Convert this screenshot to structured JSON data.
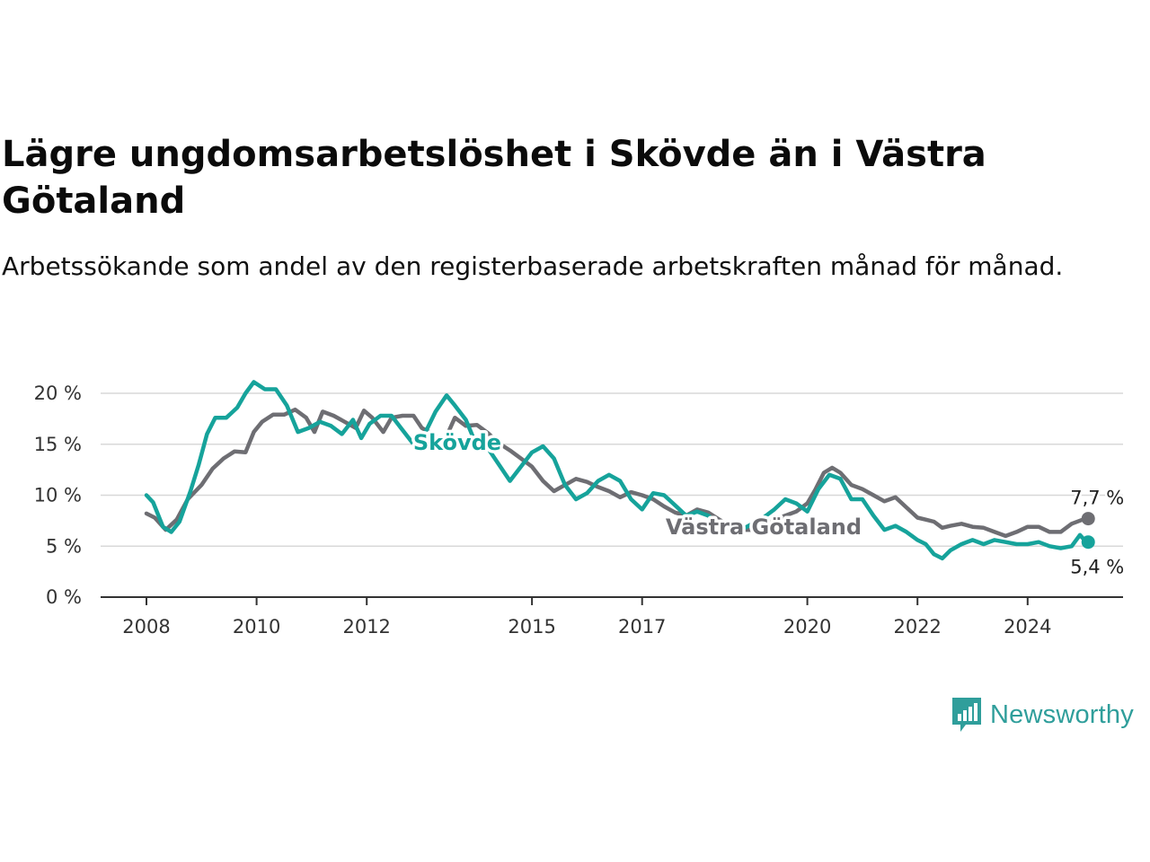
{
  "title": "Lägre ungdomsarbetslöshet i Skövde än i Västra Götaland",
  "subtitle": "Arbetssökande som andel av den registerbaserade arbetskraften månad för månad.",
  "brand": {
    "name": "Newsworthy",
    "icon": "newsworthy-logo-icon",
    "color": "#2f9e9b"
  },
  "chart_data": {
    "type": "line",
    "xlim": [
      2008,
      2025.2
    ],
    "ylim": [
      0,
      20
    ],
    "y_ticks": [
      0,
      5,
      10,
      15,
      20
    ],
    "y_tick_labels": [
      "0 %",
      "5 %",
      "10 %",
      "15 %",
      "20 %"
    ],
    "x_ticks": [
      2008,
      2010,
      2012,
      2015,
      2017,
      2020,
      2022,
      2024
    ],
    "x_tick_labels": [
      "2008",
      "2010",
      "2012",
      "2015",
      "2017",
      "2020",
      "2022",
      "2024"
    ],
    "grid": "horizontal",
    "series": [
      {
        "name": "Västra Götaland",
        "color": "#6e6e73",
        "end_label": "7,7 %",
        "points": [
          [
            2008.0,
            8.2
          ],
          [
            2008.15,
            7.8
          ],
          [
            2008.35,
            6.6
          ],
          [
            2008.55,
            7.6
          ],
          [
            2008.75,
            9.6
          ],
          [
            2009.0,
            11.0
          ],
          [
            2009.2,
            12.6
          ],
          [
            2009.4,
            13.6
          ],
          [
            2009.6,
            14.3
          ],
          [
            2009.8,
            14.2
          ],
          [
            2009.95,
            16.2
          ],
          [
            2010.1,
            17.2
          ],
          [
            2010.3,
            17.9
          ],
          [
            2010.5,
            17.9
          ],
          [
            2010.7,
            18.4
          ],
          [
            2010.9,
            17.6
          ],
          [
            2011.05,
            16.2
          ],
          [
            2011.2,
            18.2
          ],
          [
            2011.4,
            17.8
          ],
          [
            2011.6,
            17.2
          ],
          [
            2011.8,
            16.6
          ],
          [
            2011.95,
            18.3
          ],
          [
            2012.1,
            17.6
          ],
          [
            2012.3,
            16.2
          ],
          [
            2012.45,
            17.6
          ],
          [
            2012.65,
            17.8
          ],
          [
            2012.85,
            17.8
          ],
          [
            2013.0,
            16.6
          ],
          [
            2013.2,
            16.0
          ],
          [
            2013.4,
            15.2
          ],
          [
            2013.6,
            17.6
          ],
          [
            2013.8,
            16.8
          ],
          [
            2014.0,
            16.9
          ],
          [
            2014.2,
            16.1
          ],
          [
            2014.4,
            15.1
          ],
          [
            2014.6,
            14.4
          ],
          [
            2014.8,
            13.6
          ],
          [
            2015.0,
            12.8
          ],
          [
            2015.2,
            11.4
          ],
          [
            2015.4,
            10.4
          ],
          [
            2015.6,
            11.0
          ],
          [
            2015.8,
            11.6
          ],
          [
            2016.0,
            11.3
          ],
          [
            2016.2,
            10.8
          ],
          [
            2016.4,
            10.4
          ],
          [
            2016.6,
            9.8
          ],
          [
            2016.8,
            10.3
          ],
          [
            2017.0,
            10.0
          ],
          [
            2017.2,
            9.6
          ],
          [
            2017.4,
            8.9
          ],
          [
            2017.6,
            8.3
          ],
          [
            2017.8,
            8.0
          ],
          [
            2018.0,
            8.6
          ],
          [
            2018.2,
            8.3
          ],
          [
            2018.4,
            7.6
          ],
          [
            2018.6,
            7.0
          ],
          [
            2018.8,
            6.6
          ],
          [
            2019.0,
            6.6
          ],
          [
            2019.2,
            7.0
          ],
          [
            2019.4,
            7.6
          ],
          [
            2019.6,
            8.0
          ],
          [
            2019.8,
            8.4
          ],
          [
            2020.0,
            9.2
          ],
          [
            2020.15,
            10.6
          ],
          [
            2020.3,
            12.2
          ],
          [
            2020.45,
            12.7
          ],
          [
            2020.6,
            12.2
          ],
          [
            2020.8,
            11.0
          ],
          [
            2021.0,
            10.6
          ],
          [
            2021.2,
            10.0
          ],
          [
            2021.4,
            9.4
          ],
          [
            2021.6,
            9.8
          ],
          [
            2021.8,
            8.8
          ],
          [
            2022.0,
            7.8
          ],
          [
            2022.15,
            7.6
          ],
          [
            2022.3,
            7.4
          ],
          [
            2022.45,
            6.8
          ],
          [
            2022.6,
            7.0
          ],
          [
            2022.8,
            7.2
          ],
          [
            2023.0,
            6.9
          ],
          [
            2023.2,
            6.8
          ],
          [
            2023.4,
            6.4
          ],
          [
            2023.6,
            6.0
          ],
          [
            2023.8,
            6.4
          ],
          [
            2024.0,
            6.9
          ],
          [
            2024.2,
            6.9
          ],
          [
            2024.4,
            6.4
          ],
          [
            2024.6,
            6.4
          ],
          [
            2024.8,
            7.2
          ],
          [
            2025.0,
            7.6
          ],
          [
            2025.1,
            7.7
          ]
        ]
      },
      {
        "name": "Skövde",
        "color": "#16a39b",
        "end_label": "5,4 %",
        "points": [
          [
            2008.0,
            10.0
          ],
          [
            2008.12,
            9.3
          ],
          [
            2008.3,
            6.9
          ],
          [
            2008.45,
            6.4
          ],
          [
            2008.6,
            7.4
          ],
          [
            2008.8,
            10.4
          ],
          [
            2008.95,
            13.0
          ],
          [
            2009.1,
            16.0
          ],
          [
            2009.25,
            17.6
          ],
          [
            2009.45,
            17.6
          ],
          [
            2009.65,
            18.6
          ],
          [
            2009.8,
            20.0
          ],
          [
            2009.95,
            21.1
          ],
          [
            2010.15,
            20.4
          ],
          [
            2010.35,
            20.4
          ],
          [
            2010.55,
            18.8
          ],
          [
            2010.75,
            16.2
          ],
          [
            2010.95,
            16.6
          ],
          [
            2011.15,
            17.2
          ],
          [
            2011.35,
            16.8
          ],
          [
            2011.55,
            16.0
          ],
          [
            2011.75,
            17.4
          ],
          [
            2011.9,
            15.6
          ],
          [
            2012.05,
            17.0
          ],
          [
            2012.25,
            17.8
          ],
          [
            2012.45,
            17.8
          ],
          [
            2012.65,
            16.4
          ],
          [
            2012.85,
            15.0
          ],
          [
            2013.05,
            16.0
          ],
          [
            2013.25,
            18.2
          ],
          [
            2013.45,
            19.8
          ],
          [
            2013.6,
            18.8
          ],
          [
            2013.8,
            17.4
          ],
          [
            2014.0,
            14.8
          ],
          [
            2014.2,
            14.6
          ],
          [
            2014.4,
            13.0
          ],
          [
            2014.6,
            11.4
          ],
          [
            2014.8,
            12.8
          ],
          [
            2015.0,
            14.2
          ],
          [
            2015.2,
            14.8
          ],
          [
            2015.4,
            13.6
          ],
          [
            2015.6,
            11.0
          ],
          [
            2015.8,
            9.6
          ],
          [
            2016.0,
            10.2
          ],
          [
            2016.2,
            11.4
          ],
          [
            2016.4,
            12.0
          ],
          [
            2016.6,
            11.4
          ],
          [
            2016.8,
            9.6
          ],
          [
            2017.0,
            8.6
          ],
          [
            2017.2,
            10.2
          ],
          [
            2017.4,
            10.0
          ],
          [
            2017.6,
            9.0
          ],
          [
            2017.8,
            8.0
          ],
          [
            2018.0,
            8.4
          ],
          [
            2018.2,
            8.0
          ],
          [
            2018.4,
            7.0
          ],
          [
            2018.6,
            6.6
          ],
          [
            2018.8,
            6.6
          ],
          [
            2019.0,
            7.2
          ],
          [
            2019.2,
            7.8
          ],
          [
            2019.4,
            8.6
          ],
          [
            2019.6,
            9.6
          ],
          [
            2019.8,
            9.2
          ],
          [
            2020.0,
            8.4
          ],
          [
            2020.2,
            10.6
          ],
          [
            2020.4,
            12.0
          ],
          [
            2020.6,
            11.6
          ],
          [
            2020.8,
            9.6
          ],
          [
            2021.0,
            9.6
          ],
          [
            2021.2,
            8.0
          ],
          [
            2021.4,
            6.6
          ],
          [
            2021.6,
            7.0
          ],
          [
            2021.8,
            6.4
          ],
          [
            2022.0,
            5.6
          ],
          [
            2022.15,
            5.2
          ],
          [
            2022.3,
            4.2
          ],
          [
            2022.45,
            3.8
          ],
          [
            2022.6,
            4.6
          ],
          [
            2022.8,
            5.2
          ],
          [
            2023.0,
            5.6
          ],
          [
            2023.2,
            5.2
          ],
          [
            2023.4,
            5.6
          ],
          [
            2023.6,
            5.4
          ],
          [
            2023.8,
            5.2
          ],
          [
            2024.0,
            5.2
          ],
          [
            2024.2,
            5.4
          ],
          [
            2024.4,
            5.0
          ],
          [
            2024.6,
            4.8
          ],
          [
            2024.8,
            5.0
          ],
          [
            2024.95,
            6.1
          ],
          [
            2025.05,
            5.5
          ],
          [
            2025.1,
            5.4
          ]
        ]
      }
    ]
  }
}
